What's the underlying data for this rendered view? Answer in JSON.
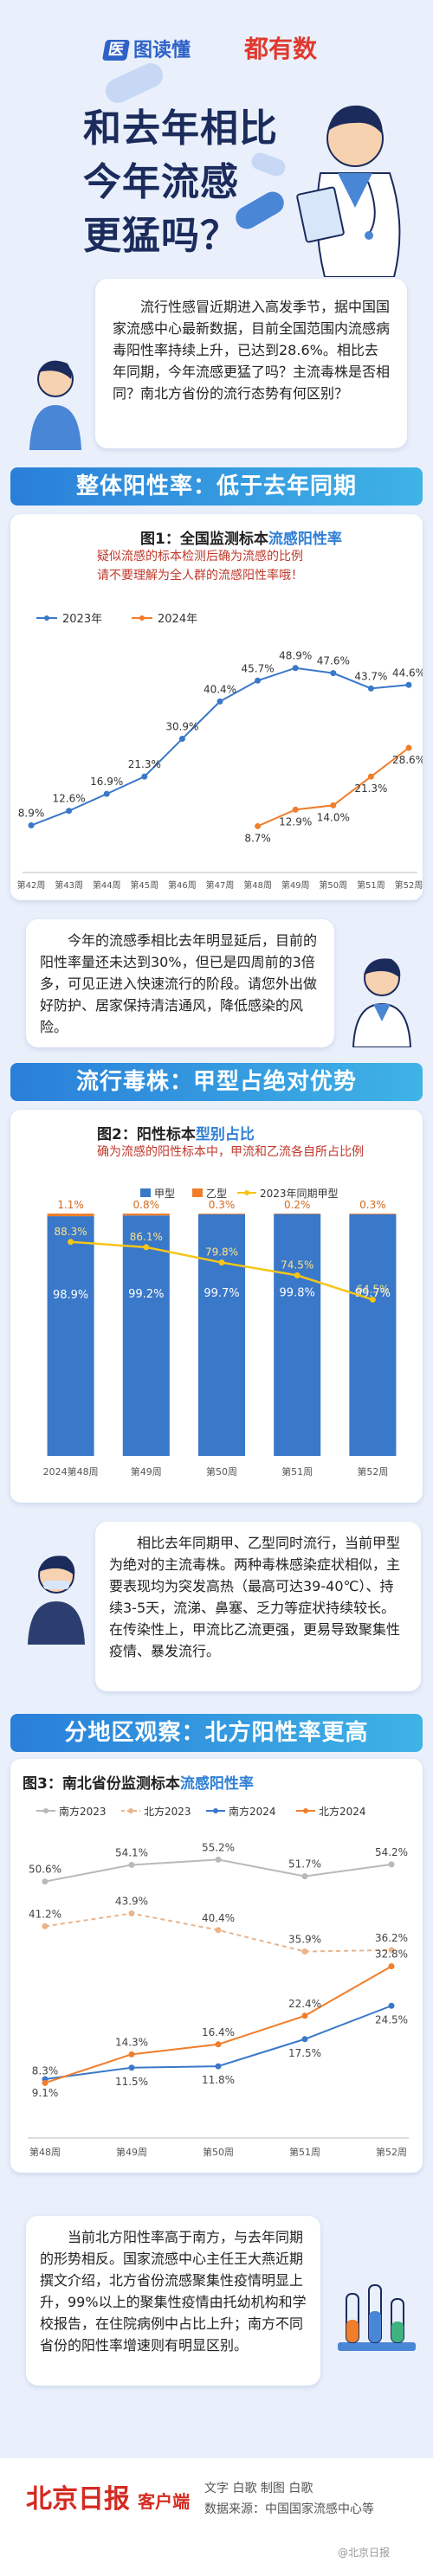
{
  "header": {
    "logo_left": "图读懂",
    "logo_left_badge": "医",
    "logo_right": "都有数",
    "title_lines": [
      "和去年相比",
      "今年流感",
      "更猛吗？"
    ]
  },
  "intro": {
    "text": "流行性感冒近期进入高发季节，据中国国家流感中心最新数据，目前全国范围内流感病毒阳性率持续上升，已达到28.6%。相比去年同期，今年流感更猛了吗？主流毒株是否相同？南北方省份的流行态势有何区别？"
  },
  "section1": {
    "title": "整体阳性率：低于去年同期"
  },
  "section2": {
    "title": "流行毒株：甲型占绝对优势"
  },
  "section3": {
    "title": "分地区观察：北方阳性率更高"
  },
  "chart1": {
    "title_prefix": "图1：全国监测标本",
    "title_highlight": "流感阳性率",
    "subtitle_lines": [
      "疑似流感的标本检测后确为流感的比例",
      "请不要理解为全人群的流感阳性率哦！"
    ]
  },
  "chart2": {
    "title_prefix": "图2：阳性标本",
    "title_highlight": "型别占比",
    "subtitle": "确为流感的阳性标本中，甲流和乙流各自所占比例"
  },
  "chart3": {
    "title_prefix": "图3：南北省份监测标本",
    "title_highlight": "流感阳性率"
  },
  "note1": "今年的流感季相比去年明显延后，目前的阳性率量还未达到30%，但已是四周前的3倍多，可见正进入快速流行的阶段。请您外出做好防护、居家保持清洁通风，降低感染的风险。",
  "note2": "相比去年同期甲、乙型同时流行，当前甲型为绝对的主流毒株。两种毒株感染症状相似，主要表现均为突发高热（最高可达39-40℃）、持续3-5天，流涕、鼻塞、乏力等症状持续较长。在传染性上，甲流比乙流更强，更易导致聚集性疫情、暴发流行。",
  "note3": "当前北方阳性率高于南方，与去年同期的形势相反。国家流感中心主任王大燕近期撰文介绍，北方省份流感聚集性疫情明显上升，99%以上的聚集性疫情由托幼机构和学校报告，在住院病例中占比上升；南方不同省份的阳性率增速则有明显区别。",
  "footer": {
    "brand_main": "北京日报",
    "brand_sub": "客户端",
    "credit_line1": "文字 白歌  制图 白歌",
    "credit_line2": "数据来源：中国国家流感中心等",
    "watermark": "@北京日报"
  },
  "chart_data": [
    {
      "type": "line",
      "title": "图1：全国监测标本流感阳性率",
      "categories": [
        "第42周",
        "第43周",
        "第44周",
        "第45周",
        "第46周",
        "第47周",
        "第48周",
        "第49周",
        "第50周",
        "第51周",
        "第52周"
      ],
      "series": [
        {
          "name": "2023年",
          "color": "#3a78c9",
          "values": [
            8.9,
            12.6,
            16.9,
            21.3,
            30.9,
            40.4,
            45.7,
            48.9,
            47.6,
            43.7,
            44.6
          ]
        },
        {
          "name": "2024年",
          "color": "#f07e2b",
          "values": [
            null,
            null,
            null,
            null,
            null,
            null,
            8.7,
            12.9,
            14.0,
            21.3,
            28.6
          ]
        }
      ],
      "value_labels": [
        "8.9%",
        "12.6%",
        "16.9%",
        "21.3%",
        "30.9%",
        "40.4%",
        "45.7%",
        "48.9%",
        "47.6%",
        "43.7%",
        "44.6%"
      ],
      "value_labels_2024": [
        "8.7%",
        "12.9%",
        "14.0%",
        "21.3%",
        "28.6%"
      ],
      "legend": "top-left"
    },
    {
      "type": "bar",
      "title": "图2：阳性标本型别占比",
      "categories": [
        "2024第48周",
        "第49周",
        "第50周",
        "第51周",
        "第52周"
      ],
      "series": [
        {
          "name": "甲型",
          "color": "#3a78c9",
          "values": [
            98.9,
            99.2,
            99.7,
            99.8,
            99.7
          ]
        },
        {
          "name": "乙型",
          "color": "#f07e2b",
          "values": [
            1.1,
            0.8,
            0.3,
            0.2,
            0.3
          ]
        },
        {
          "name": "2023年同期甲型",
          "color": "#f5c518",
          "values": [
            88.3,
            86.1,
            79.8,
            74.5,
            64.5
          ]
        }
      ],
      "labels_a": [
        "98.9%",
        "99.2%",
        "99.7%",
        "99.8%",
        "99.7%"
      ],
      "labels_b": [
        "1.1%",
        "0.8%",
        "0.3%",
        "0.2%",
        "0.3%"
      ],
      "labels_2023": [
        "88.3%",
        "86.1%",
        "79.8%",
        "74.5%",
        "64.5%"
      ],
      "ylim": [
        0,
        100
      ],
      "legend": "top"
    },
    {
      "type": "line",
      "title": "图3：南北省份监测标本流感阳性率",
      "categories": [
        "第48周",
        "第49周",
        "第50周",
        "第51周",
        "第52周"
      ],
      "series": [
        {
          "name": "南方2023",
          "color": "#b9b9b9",
          "dash": false,
          "values": [
            50.6,
            54.1,
            55.2,
            51.7,
            54.2
          ]
        },
        {
          "name": "北方2023",
          "color": "#e8b48c",
          "dash": true,
          "values": [
            41.2,
            43.9,
            40.4,
            35.9,
            36.2
          ]
        },
        {
          "name": "南方2024",
          "color": "#3a78c9",
          "dash": false,
          "values": [
            9.1,
            11.5,
            11.8,
            17.5,
            24.5
          ]
        },
        {
          "name": "北方2024",
          "color": "#f07e2b",
          "dash": false,
          "values": [
            8.3,
            14.3,
            16.4,
            22.4,
            32.8
          ]
        }
      ],
      "labels": {
        "南方2023": [
          "50.6%",
          "54.1%",
          "55.2%",
          "51.7%",
          "54.2%"
        ],
        "北方2023": [
          "41.2%",
          "43.9%",
          "40.4%",
          "35.9%",
          "36.2%"
        ],
        "南方2024": [
          "9.1%",
          "11.5%",
          "11.8%",
          "17.5%",
          "24.5%"
        ],
        "北方2024": [
          "8.3%",
          "14.3%",
          "16.4%",
          "22.4%",
          "32.8%"
        ]
      },
      "legend": "top"
    }
  ]
}
